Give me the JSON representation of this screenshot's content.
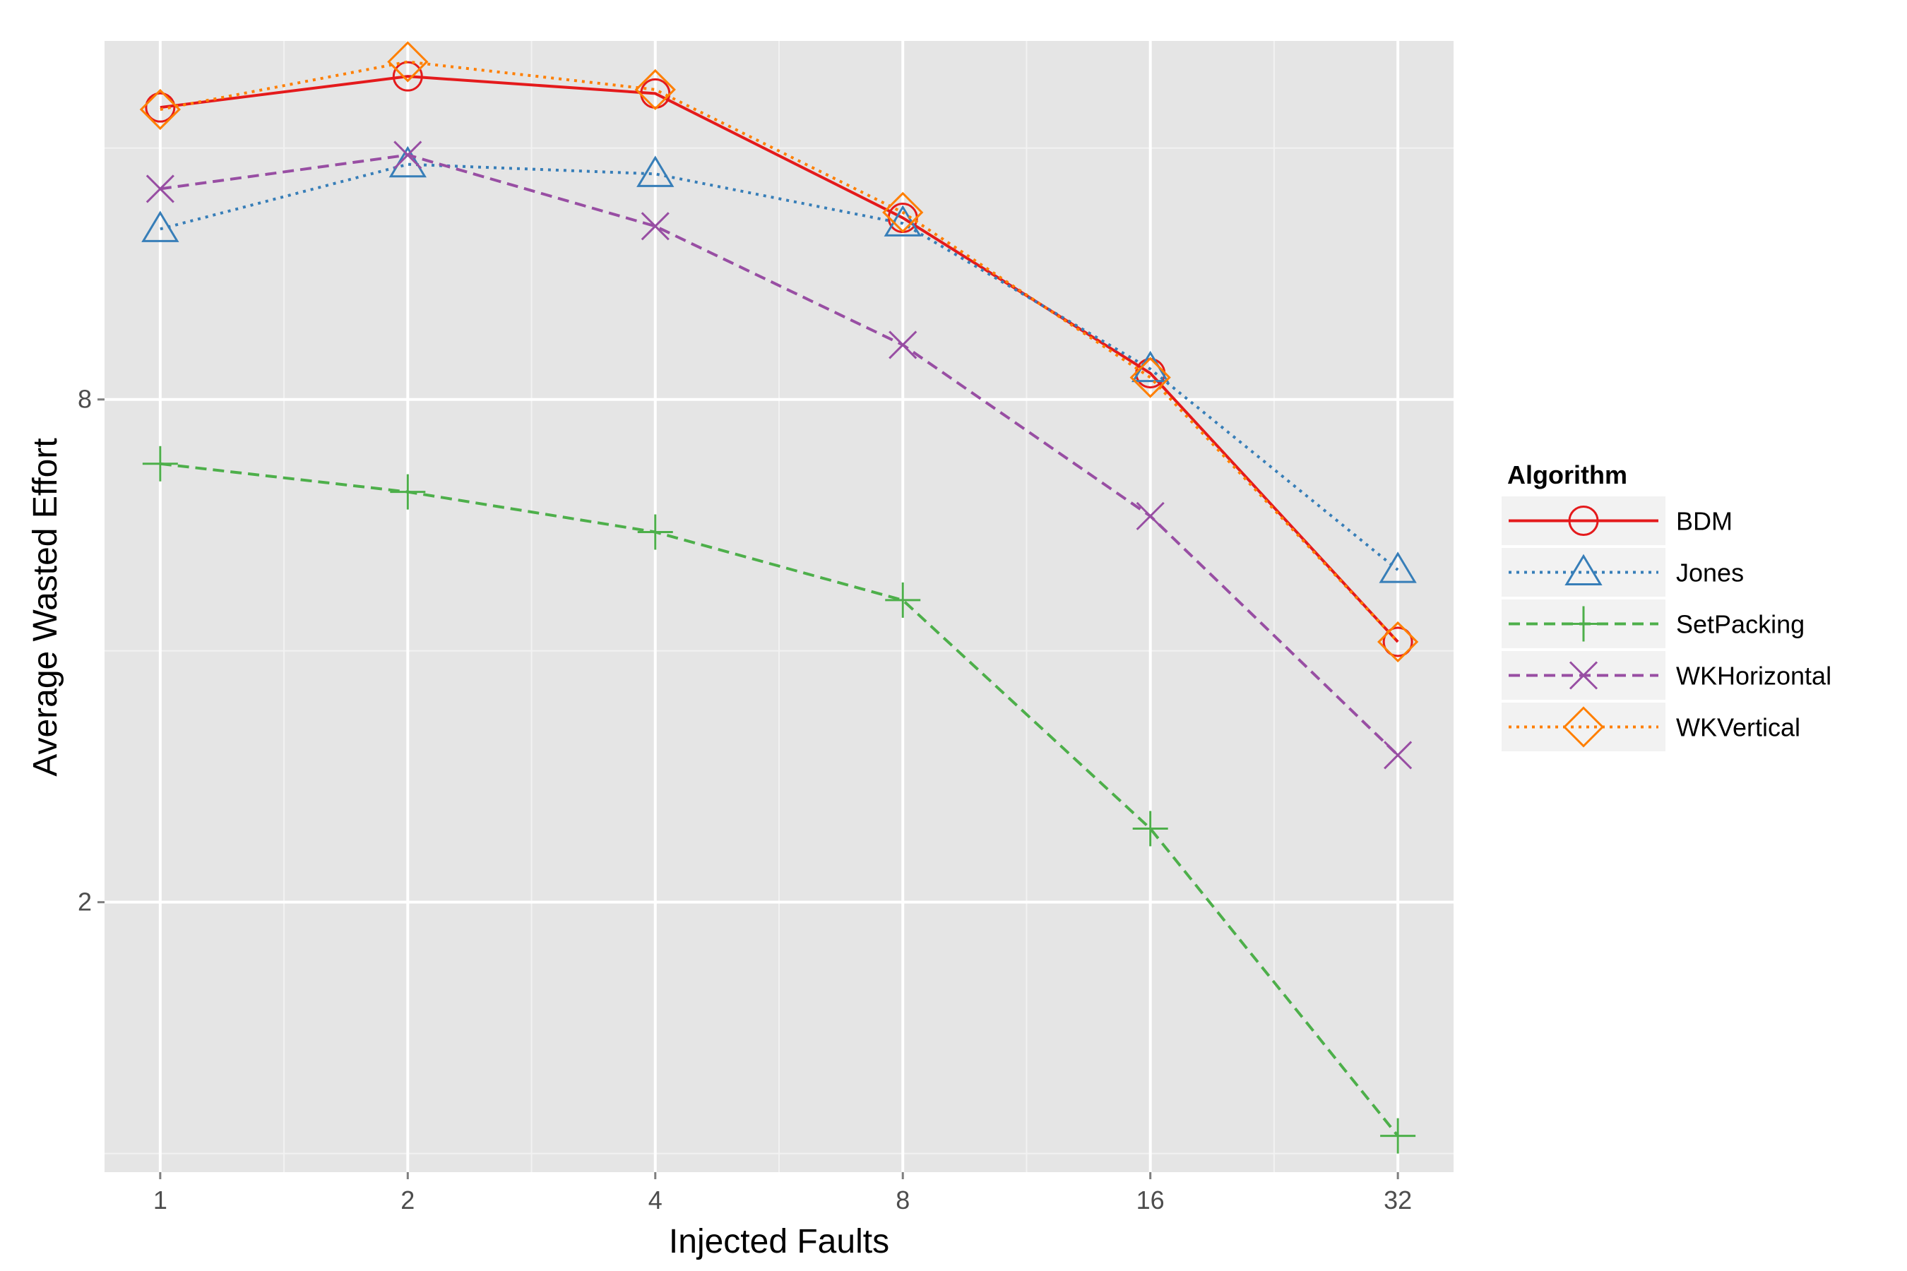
{
  "chart_data": {
    "type": "line",
    "title": "",
    "xlabel": "Injected Faults",
    "ylabel": "Average Wasted Effort",
    "x_scale": "log2",
    "y_scale": "log",
    "x": [
      1,
      2,
      4,
      8,
      16,
      32
    ],
    "x_tick_labels": [
      "1",
      "2",
      "4",
      "8",
      "16",
      "32"
    ],
    "y_ticks": [
      2,
      8
    ],
    "y_tick_labels": [
      "2",
      "8"
    ],
    "ylim": [
      0.95,
      21.5
    ],
    "grid": true,
    "legend": {
      "title": "Algorithm",
      "placement": "right"
    },
    "series": [
      {
        "name": "BDM",
        "color": "#e41a1c",
        "dash": "solid",
        "marker": "circle",
        "values": [
          17.9,
          19.5,
          18.6,
          13.2,
          8.6,
          4.1
        ]
      },
      {
        "name": "Jones",
        "color": "#377eb8",
        "dash": "dotted",
        "marker": "triangle",
        "values": [
          12.8,
          15.3,
          14.9,
          13.0,
          8.7,
          5.0
        ]
      },
      {
        "name": "SetPacking",
        "color": "#4daf4a",
        "dash": "dashed",
        "marker": "plus",
        "values": [
          6.7,
          6.2,
          5.55,
          4.6,
          2.45,
          1.05
        ]
      },
      {
        "name": "WKHorizontal",
        "color": "#984ea3",
        "dash": "dashed",
        "marker": "x",
        "values": [
          14.3,
          15.7,
          12.9,
          9.3,
          5.8,
          3.0
        ]
      },
      {
        "name": "WKVertical",
        "color": "#ff7f00",
        "dash": "dotted",
        "marker": "diamond",
        "values": [
          17.8,
          20.3,
          18.8,
          13.4,
          8.5,
          4.1
        ]
      }
    ]
  }
}
